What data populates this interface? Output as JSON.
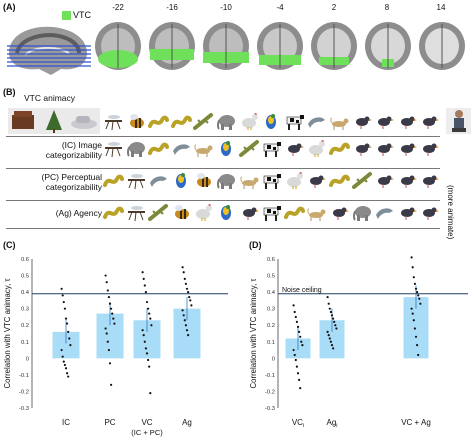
{
  "panel_a": {
    "letter": "(A)",
    "legend_label": "VTC",
    "vtc_color": "#6ee05a",
    "slices": [
      "-22",
      "-16",
      "-10",
      "-4",
      "2",
      "8",
      "14"
    ]
  },
  "panel_b": {
    "letter": "(B)",
    "rows": [
      {
        "label": "VTC animacy",
        "icons": [
          "mosquito-icon",
          "bee-icon",
          "snake-icon",
          "snake-icon",
          "lizard-icon",
          "elephant-icon",
          "chicken-icon",
          "parrot-icon",
          "cow-icon",
          "dolphin-icon",
          "cat-icon",
          "bird-icon",
          "bird-icon",
          "bird-icon",
          "bird-icon"
        ]
      },
      {
        "label": "(IC) Image categorizability",
        "icons": [
          "mosquito-icon",
          "elephant-icon",
          "snake-icon",
          "dolphin-icon",
          "cat-icon",
          "parrot-icon",
          "lizard-icon",
          "cow-icon",
          "bird-icon",
          "chicken-icon",
          "snake-icon",
          "bird-icon",
          "bird-icon",
          "bird-icon",
          "bird-icon"
        ]
      },
      {
        "label": "(PC) Perceptual categorizability",
        "icons": [
          "snake-icon",
          "mosquito-icon",
          "dolphin-icon",
          "parrot-icon",
          "bee-icon",
          "elephant-icon",
          "cat-icon",
          "cow-icon",
          "chicken-icon",
          "bird-icon",
          "snake-icon",
          "lizard-icon",
          "bird-icon",
          "bird-icon",
          "bird-icon"
        ]
      },
      {
        "label": "(Ag) Agency",
        "icons": [
          "snake-icon",
          "mosquito-icon",
          "lizard-icon",
          "bee-icon",
          "chicken-icon",
          "parrot-icon",
          "bird-icon",
          "cow-icon",
          "snake-icon",
          "cat-icon",
          "bird-icon",
          "elephant-icon",
          "dolphin-icon",
          "bird-icon",
          "bird-icon"
        ]
      }
    ],
    "more_animate_label": "(more animate)"
  },
  "panel_c": {
    "letter": "(C)",
    "ylabel": "Correlation with VTC animacy, τ",
    "categories": [
      "IC",
      "PC",
      "VC",
      "Ag"
    ],
    "category_sublabels": [
      "",
      "",
      "(IC + PC)",
      ""
    ],
    "ticks": [
      "0.6",
      "0.5",
      "0.4",
      "0.3",
      "0.2",
      "0.1",
      "0",
      "-0.1",
      "-0.2",
      "-0.3"
    ]
  },
  "panel_d": {
    "letter": "(D)",
    "ylabel": "Correlation with VTC animacy, τ",
    "noise_ceiling_label": "Noise ceiling",
    "categories": [
      "VC",
      "Ag",
      "VC + Ag"
    ],
    "category_subscripts": [
      "i",
      "i",
      ""
    ],
    "ticks": [
      "0.6",
      "0.5",
      "0.4",
      "0.3",
      "0.2",
      "0.1",
      "0",
      "-0.1",
      "-0.2",
      "-0.3"
    ]
  },
  "chart_data": [
    {
      "type": "bar",
      "ylabel": "Correlation with VTC animacy, τ",
      "categories": [
        "IC",
        "PC",
        "VC (IC + PC)",
        "Ag"
      ],
      "values": [
        0.16,
        0.27,
        0.23,
        0.3
      ],
      "ylim": [
        -0.3,
        0.6
      ],
      "reference_lines": [
        {
          "y": 0.39
        }
      ],
      "points": [
        [
          0.42,
          0.38,
          0.34,
          0.3,
          0.24,
          0.21,
          0.16,
          0.12,
          0.08,
          0.05,
          0.01,
          -0.02,
          -0.04,
          -0.06,
          -0.09,
          -0.11
        ],
        [
          0.5,
          0.46,
          0.41,
          0.37,
          0.33,
          0.3,
          0.27,
          0.24,
          0.21,
          0.18,
          0.15,
          0.1,
          0.05,
          -0.03,
          -0.16
        ],
        [
          0.52,
          0.48,
          0.44,
          0.4,
          0.34,
          0.3,
          0.27,
          0.24,
          0.2,
          0.17,
          0.14,
          0.1,
          0.06,
          0.03,
          -0.01,
          -0.05,
          -0.21
        ],
        [
          0.55,
          0.52,
          0.48,
          0.45,
          0.42,
          0.4,
          0.37,
          0.35,
          0.32,
          0.29,
          0.26,
          0.23,
          0.2,
          0.17,
          0.14
        ]
      ]
    },
    {
      "type": "bar",
      "ylabel": "Correlation with VTC animacy, τ",
      "categories": [
        "VCi",
        "Agi",
        "VC + Ag"
      ],
      "values": [
        0.12,
        0.23,
        0.37
      ],
      "ylim": [
        -0.3,
        0.6
      ],
      "reference_lines": [
        {
          "y": 0.39,
          "label": "Noise ceiling"
        }
      ],
      "points": [
        [
          0.32,
          0.28,
          0.25,
          0.22,
          0.19,
          0.16,
          0.13,
          0.1,
          0.08,
          0.05,
          0.02,
          -0.01,
          -0.05,
          -0.09,
          -0.13,
          -0.18
        ],
        [
          0.37,
          0.33,
          0.3,
          0.28,
          0.26,
          0.24,
          0.22,
          0.2,
          0.18,
          0.16,
          0.14,
          0.12,
          0.1,
          0.08,
          0.06
        ],
        [
          0.61,
          0.55,
          0.49,
          0.45,
          0.42,
          0.4,
          0.38,
          0.36,
          0.33,
          0.3,
          0.27,
          0.23,
          0.18,
          0.13,
          0.08,
          0.02
        ]
      ]
    }
  ]
}
